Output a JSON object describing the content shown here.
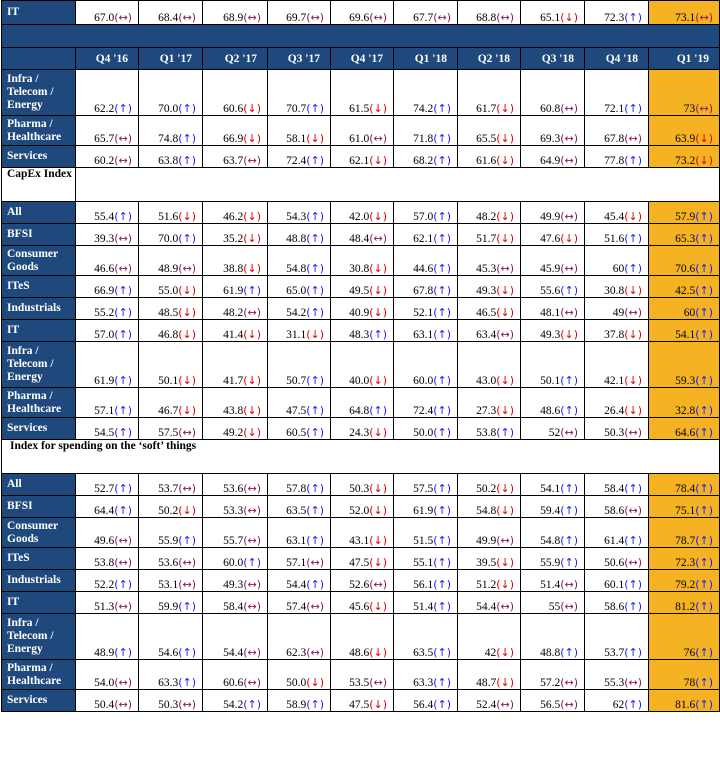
{
  "header_quarters": [
    "Q4 '16",
    "Q1 '17",
    "Q2 '17",
    "Q3 '17",
    "Q4 '17",
    "Q1 '18",
    "Q2 '18",
    "Q3 '18",
    "Q4 '18",
    "Q1 '19"
  ],
  "arrows": {
    "up": "(↑)",
    "down": "(↓)",
    "flat": "(↔)"
  },
  "colors": {
    "label_bg": "#1F497D",
    "highlight": "#F5B323",
    "up": "#1a1aff",
    "down": "#e00000",
    "flat": "#8a1a5a"
  },
  "top_row": {
    "label": "IT",
    "values": [
      "67.0",
      "68.4",
      "68.9",
      "69.7",
      "69.6",
      "67.7",
      "68.8",
      "65.1",
      "72.3",
      "73.1"
    ],
    "trends": [
      "flat",
      "flat",
      "flat",
      "flat",
      "flat",
      "flat",
      "flat",
      "down",
      "up",
      "flat"
    ]
  },
  "sections": [
    {
      "title": "",
      "rows": [
        {
          "label": "Infra / Telecom / Energy",
          "values": [
            "62.2",
            "70.0",
            "60.6",
            "70.7",
            "61.5",
            "74.2",
            "61.7",
            "60.8",
            "72.1",
            "73"
          ],
          "trends": [
            "up",
            "up",
            "down",
            "up",
            "down",
            "up",
            "down",
            "flat",
            "up",
            "flat"
          ]
        },
        {
          "label": "Pharma / Healthcare",
          "values": [
            "65.7",
            "74.8",
            "66.9",
            "58.1",
            "61.0",
            "71.8",
            "65.5",
            "69.3",
            "67.8",
            "63.9"
          ],
          "trends": [
            "flat",
            "up",
            "down",
            "down",
            "flat",
            "up",
            "down",
            "flat",
            "flat",
            "down"
          ]
        },
        {
          "label": "Services",
          "values": [
            "60.2",
            "63.8",
            "63.7",
            "72.4",
            "62.1",
            "68.2",
            "61.6",
            "64.9",
            "77.8",
            "73.2"
          ],
          "trends": [
            "flat",
            "up",
            "flat",
            "up",
            "down",
            "up",
            "down",
            "flat",
            "up",
            "down"
          ]
        }
      ]
    },
    {
      "title": "CapEx Index",
      "rows": [
        {
          "label": "All",
          "values": [
            "55.4",
            "51.6",
            "46.2",
            "54.3",
            "42.0",
            "57.0",
            "48.2",
            "49.9",
            "45.4",
            "57.9"
          ],
          "trends": [
            "up",
            "down",
            "down",
            "up",
            "down",
            "up",
            "down",
            "flat",
            "down",
            "up"
          ]
        },
        {
          "label": "BFSI",
          "values": [
            "39.3",
            "70.0",
            "35.2",
            "48.8",
            "48.4",
            "62.1",
            "51.7",
            "47.6",
            "51.6",
            "65.3"
          ],
          "trends": [
            "flat",
            "up",
            "down",
            "up",
            "flat",
            "up",
            "down",
            "down",
            "up",
            "up"
          ]
        },
        {
          "label": "Consumer Goods",
          "values": [
            "46.6",
            "48.9",
            "38.8",
            "54.8",
            "30.8",
            "44.6",
            "45.3",
            "45.9",
            "60",
            "70.6"
          ],
          "trends": [
            "flat",
            "flat",
            "down",
            "up",
            "down",
            "up",
            "flat",
            "flat",
            "up",
            "up"
          ]
        },
        {
          "label": "ITeS",
          "values": [
            "66.9",
            "55.0",
            "61.9",
            "65.0",
            "49.5",
            "67.8",
            "49.3",
            "55.6",
            "30.8",
            "42.5"
          ],
          "trends": [
            "up",
            "down",
            "up",
            "up",
            "down",
            "up",
            "down",
            "up",
            "down",
            "up"
          ]
        },
        {
          "label": "Industrials",
          "values": [
            "55.2",
            "48.5",
            "48.2",
            "54.2",
            "40.9",
            "52.1",
            "46.5",
            "48.1",
            "49",
            "60"
          ],
          "trends": [
            "up",
            "down",
            "flat",
            "up",
            "down",
            "up",
            "down",
            "flat",
            "flat",
            "up"
          ]
        },
        {
          "label": "IT",
          "values": [
            "57.0",
            "46.8",
            "41.4",
            "31.1",
            "48.3",
            "63.1",
            "63.4",
            "49.3",
            "37.8",
            "54.1"
          ],
          "trends": [
            "up",
            "down",
            "down",
            "down",
            "up",
            "up",
            "flat",
            "down",
            "down",
            "up"
          ]
        },
        {
          "label": "Infra / Telecom / Energy",
          "values": [
            "61.9",
            "50.1",
            "41.7",
            "50.7",
            "40.0",
            "60.0",
            "43.0",
            "50.1",
            "42.1",
            "59.3"
          ],
          "trends": [
            "up",
            "down",
            "down",
            "up",
            "down",
            "up",
            "down",
            "up",
            "down",
            "up"
          ]
        },
        {
          "label": "Pharma / Healthcare",
          "values": [
            "57.1",
            "46.7",
            "43.8",
            "47.5",
            "64.8",
            "72.4",
            "27.3",
            "48.6",
            "26.4",
            "32.8"
          ],
          "trends": [
            "up",
            "down",
            "down",
            "up",
            "up",
            "up",
            "down",
            "up",
            "down",
            "up"
          ]
        },
        {
          "label": "Services",
          "values": [
            "54.5",
            "57.5",
            "49.2",
            "60.5",
            "24.3",
            "50.0",
            "53.8",
            "52",
            "50.3",
            "64.6"
          ],
          "trends": [
            "up",
            "flat",
            "down",
            "up",
            "down",
            "up",
            "up",
            "flat",
            "flat",
            "up"
          ]
        }
      ]
    },
    {
      "title": "Index for spending on the ‘soft’ things",
      "rows": [
        {
          "label": "All",
          "values": [
            "52.7",
            "53.7",
            "53.6",
            "57.8",
            "50.3",
            "57.5",
            "50.2",
            "54.1",
            "58.4",
            "78.4"
          ],
          "trends": [
            "up",
            "flat",
            "flat",
            "up",
            "down",
            "up",
            "down",
            "up",
            "up",
            "up"
          ]
        },
        {
          "label": "BFSI",
          "values": [
            "64.4",
            "50.2",
            "53.3",
            "63.5",
            "52.0",
            "61.9",
            "54.8",
            "59.4",
            "58.6",
            "75.1"
          ],
          "trends": [
            "up",
            "down",
            "flat",
            "up",
            "down",
            "up",
            "down",
            "up",
            "flat",
            "up"
          ]
        },
        {
          "label": "Consumer Goods",
          "values": [
            "49.6",
            "55.9",
            "55.7",
            "63.1",
            "43.1",
            "51.5",
            "49.9",
            "54.8",
            "61.4",
            "78.7"
          ],
          "trends": [
            "flat",
            "up",
            "flat",
            "up",
            "down",
            "up",
            "flat",
            "up",
            "up",
            "up"
          ]
        },
        {
          "label": "ITeS",
          "values": [
            "53.8",
            "53.6",
            "60.0",
            "57.1",
            "47.5",
            "55.1",
            "39.5",
            "55.9",
            "50.6",
            "72.3"
          ],
          "trends": [
            "flat",
            "flat",
            "up",
            "flat",
            "down",
            "up",
            "down",
            "up",
            "flat",
            "up"
          ]
        },
        {
          "label": "Industrials",
          "values": [
            "52.2",
            "53.1",
            "49.3",
            "54.4",
            "52.6",
            "56.1",
            "51.2",
            "51.4",
            "60.1",
            "79.2"
          ],
          "trends": [
            "up",
            "flat",
            "flat",
            "up",
            "flat",
            "up",
            "down",
            "flat",
            "up",
            "up"
          ]
        },
        {
          "label": "IT",
          "values": [
            "51.3",
            "59.9",
            "58.4",
            "57.4",
            "45.6",
            "51.4",
            "54.4",
            "55",
            "58.6",
            "81.2"
          ],
          "trends": [
            "flat",
            "up",
            "flat",
            "flat",
            "down",
            "up",
            "flat",
            "flat",
            "up",
            "up"
          ]
        },
        {
          "label": "Infra / Telecom / Energy",
          "values": [
            "48.9",
            "54.6",
            "54.4",
            "62.3",
            "48.6",
            "63.5",
            "42",
            "48.8",
            "53.7",
            "76"
          ],
          "trends": [
            "up",
            "up",
            "flat",
            "flat",
            "down",
            "up",
            "down",
            "up",
            "up",
            "up"
          ]
        },
        {
          "label": "Pharma / Healthcare",
          "values": [
            "54.0",
            "63.3",
            "60.6",
            "50.0",
            "53.5",
            "63.3",
            "48.7",
            "57.2",
            "55.3",
            "78"
          ],
          "trends": [
            "flat",
            "up",
            "flat",
            "down",
            "flat",
            "up",
            "down",
            "flat",
            "flat",
            "up"
          ]
        },
        {
          "label": "Services",
          "values": [
            "50.4",
            "50.3",
            "54.2",
            "58.9",
            "47.5",
            "56.4",
            "52.4",
            "56.5",
            "62",
            "81.6"
          ],
          "trends": [
            "flat",
            "flat",
            "up",
            "up",
            "down",
            "up",
            "flat",
            "flat",
            "up",
            "up"
          ]
        }
      ]
    }
  ]
}
